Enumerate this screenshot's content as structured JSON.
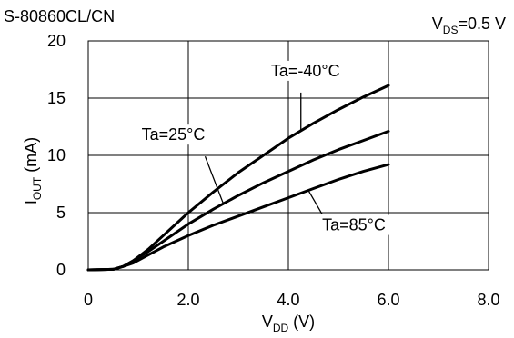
{
  "chart_data": {
    "type": "line",
    "title": "S-80860CL/CN",
    "condition": {
      "main": "V",
      "sub": "DS",
      "rest": "=0.5 V"
    },
    "xlabel": {
      "main": "V",
      "sub": "DD",
      "rest": " (V)"
    },
    "ylabel": {
      "main": "I",
      "sub": "OUT",
      "rest": " (mA)"
    },
    "xlim": [
      0,
      8
    ],
    "ylim": [
      0,
      20
    ],
    "x_ticks": [
      0,
      2,
      4,
      6,
      8
    ],
    "x_tick_labels": [
      "0",
      "2.0",
      "4.0",
      "6.0",
      "8.0"
    ],
    "y_ticks": [
      0,
      5,
      10,
      15,
      20
    ],
    "y_tick_labels": [
      "0",
      "5",
      "10",
      "15",
      "20"
    ],
    "grid": true,
    "legend": "none",
    "line_color": "#000000",
    "series": [
      {
        "name": "Ta=-40°C",
        "x": [
          0,
          0.5,
          0.7,
          0.9,
          1.2,
          1.5,
          2.0,
          2.5,
          3.0,
          3.5,
          4.0,
          4.5,
          5.0,
          5.5,
          6.0
        ],
        "y": [
          0,
          0.05,
          0.3,
          0.8,
          1.8,
          3.0,
          5.0,
          6.8,
          8.5,
          10.0,
          11.5,
          12.8,
          14.0,
          15.1,
          16.1
        ]
      },
      {
        "name": "Ta=25°C",
        "x": [
          0,
          0.5,
          0.7,
          0.9,
          1.2,
          1.5,
          2.0,
          2.5,
          3.0,
          3.5,
          4.0,
          4.5,
          5.0,
          5.5,
          6.0
        ],
        "y": [
          0,
          0.05,
          0.3,
          0.8,
          1.6,
          2.5,
          4.0,
          5.3,
          6.5,
          7.6,
          8.6,
          9.6,
          10.5,
          11.3,
          12.1
        ]
      },
      {
        "name": "Ta=85°C",
        "x": [
          0,
          0.5,
          0.7,
          0.9,
          1.2,
          1.5,
          2.0,
          2.5,
          3.0,
          3.5,
          4.0,
          4.5,
          5.0,
          5.5,
          6.0
        ],
        "y": [
          0,
          0.05,
          0.3,
          0.6,
          1.3,
          2.0,
          3.0,
          3.9,
          4.7,
          5.5,
          6.3,
          7.1,
          7.9,
          8.6,
          9.2
        ]
      }
    ],
    "annotations": [
      {
        "text": "Ta=-40°C",
        "series": 0,
        "x": 4.25
      },
      {
        "text": "Ta=25°C",
        "series": 1,
        "x": 2.7
      },
      {
        "text": "Ta=85°C",
        "series": 2,
        "x": 4.4
      }
    ]
  }
}
